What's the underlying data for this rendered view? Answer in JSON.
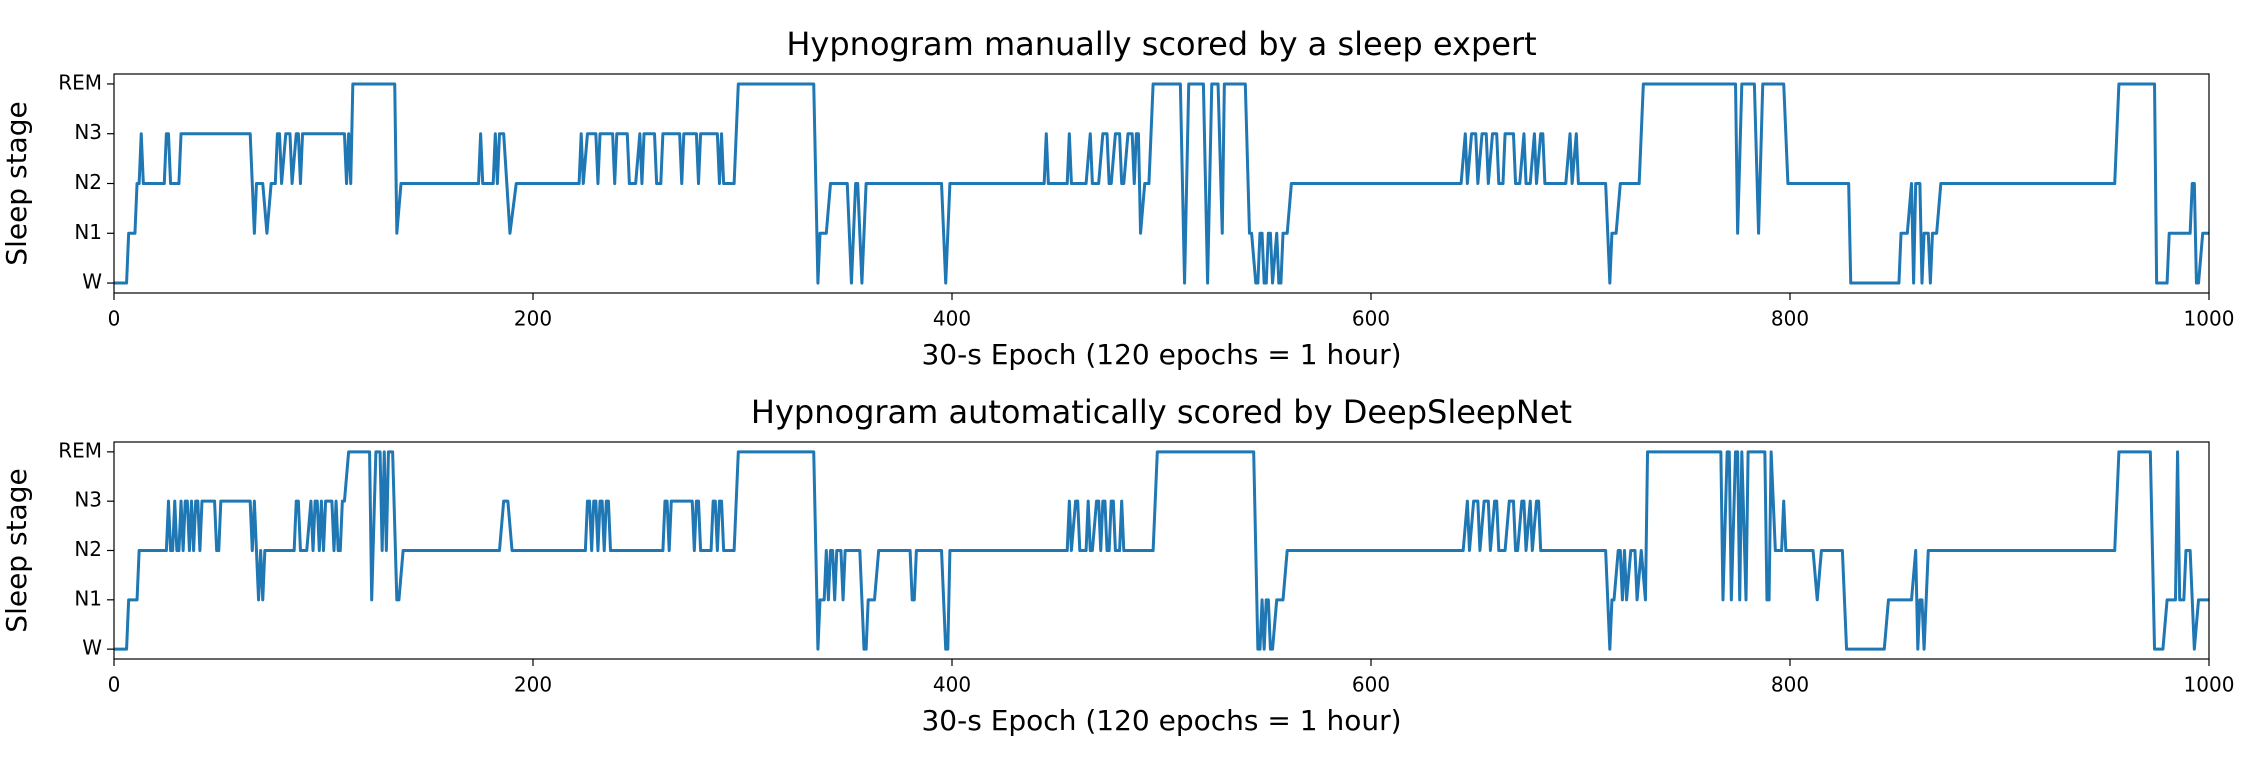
{
  "chart_data": [
    {
      "type": "line",
      "title": "Hypnogram manually scored by a sleep expert",
      "xlabel": "30-s Epoch (120 epochs = 1 hour)",
      "ylabel": "Sleep stage",
      "xlim": [
        0,
        1000
      ],
      "xticks": [
        0,
        200,
        400,
        600,
        800,
        1000
      ],
      "ylim": [
        -0.2,
        4.2
      ],
      "yticks": [
        {
          "value": 0,
          "label": "W"
        },
        {
          "value": 1,
          "label": "N1"
        },
        {
          "value": 2,
          "label": "N2"
        },
        {
          "value": 3,
          "label": "N3"
        },
        {
          "value": 4,
          "label": "REM"
        }
      ],
      "color": "#1f77b4",
      "x": [
        0,
        6,
        7,
        10,
        11,
        12,
        13,
        14,
        24,
        25,
        26,
        27,
        31,
        32,
        65,
        67,
        68,
        71,
        73,
        75,
        77,
        78,
        79,
        80,
        82,
        84,
        85,
        87,
        88,
        89,
        90,
        110,
        111,
        112,
        113,
        114,
        134,
        135,
        137,
        174,
        175,
        176,
        181,
        182,
        183,
        184,
        186,
        189,
        192,
        222,
        223,
        224,
        226,
        230,
        231,
        232,
        238,
        239,
        240,
        245,
        246,
        249,
        251,
        252,
        253,
        258,
        259,
        261,
        262,
        270,
        271,
        272,
        278,
        279,
        280,
        288,
        289,
        290,
        291,
        296,
        298,
        334,
        336,
        337,
        340,
        342,
        350,
        352,
        354,
        355,
        357,
        359,
        395,
        397,
        399,
        444,
        445,
        446,
        455,
        456,
        457,
        464,
        466,
        467,
        470,
        472,
        474,
        475,
        476,
        478,
        480,
        481,
        482,
        484,
        486,
        487,
        488,
        489,
        490,
        492,
        494,
        496,
        509,
        511,
        513,
        520,
        522,
        524,
        527,
        529,
        530,
        540,
        542,
        543,
        545,
        546,
        547,
        548,
        549,
        550,
        551,
        552,
        553,
        555,
        556,
        557,
        558,
        560,
        562,
        643,
        645,
        646,
        648,
        650,
        651,
        653,
        655,
        656,
        658,
        660,
        661,
        663,
        664,
        668,
        669,
        671,
        673,
        674,
        676,
        678,
        679,
        681,
        682,
        683,
        693,
        695,
        696,
        698,
        699,
        712,
        714,
        715,
        717,
        719,
        728,
        730,
        774,
        775,
        777,
        783,
        785,
        787,
        797,
        799,
        828,
        829,
        852,
        853,
        856,
        858,
        859,
        860,
        862,
        863,
        864,
        866,
        867,
        868,
        870,
        872,
        955,
        957,
        974,
        975,
        980,
        981,
        991,
        992,
        993,
        994,
        995,
        997,
        1000
      ],
      "values": [
        0,
        0,
        1,
        1,
        2,
        2,
        3,
        2,
        2,
        3,
        3,
        2,
        2,
        3,
        3,
        1,
        2,
        2,
        1,
        2,
        2,
        3,
        3,
        2,
        3,
        3,
        2,
        3,
        3,
        2,
        3,
        3,
        2,
        3,
        2,
        4,
        4,
        1,
        2,
        2,
        3,
        2,
        2,
        3,
        2,
        3,
        3,
        1,
        2,
        2,
        3,
        2,
        3,
        3,
        2,
        3,
        3,
        2,
        3,
        3,
        2,
        2,
        3,
        2,
        3,
        3,
        2,
        2,
        3,
        3,
        2,
        3,
        3,
        2,
        3,
        3,
        2,
        3,
        2,
        2,
        4,
        4,
        0,
        1,
        1,
        2,
        2,
        0,
        2,
        2,
        0,
        2,
        2,
        0,
        2,
        2,
        3,
        2,
        2,
        3,
        2,
        2,
        3,
        2,
        2,
        3,
        3,
        2,
        2,
        3,
        3,
        2,
        2,
        3,
        3,
        2,
        3,
        3,
        1,
        2,
        2,
        4,
        4,
        0,
        4,
        4,
        0,
        4,
        4,
        1,
        4,
        4,
        1,
        1,
        0,
        0,
        1,
        1,
        0,
        0,
        1,
        1,
        0,
        1,
        0,
        0,
        1,
        1,
        2,
        2,
        3,
        2,
        3,
        3,
        2,
        3,
        3,
        2,
        3,
        3,
        2,
        2,
        3,
        3,
        2,
        2,
        3,
        2,
        2,
        3,
        2,
        3,
        3,
        2,
        2,
        3,
        2,
        3,
        2,
        2,
        0,
        1,
        1,
        2,
        2,
        4,
        4,
        1,
        4,
        4,
        1,
        4,
        4,
        2,
        2,
        0,
        0,
        1,
        1,
        2,
        0,
        2,
        2,
        0,
        1,
        1,
        0,
        1,
        1,
        2,
        2,
        4,
        4,
        0,
        0,
        1,
        1,
        2,
        2,
        0,
        0,
        1,
        1
      ]
    },
    {
      "type": "line",
      "title": "Hypnogram automatically scored by DeepSleepNet",
      "xlabel": "30-s Epoch (120 epochs = 1 hour)",
      "ylabel": "Sleep stage",
      "xlim": [
        0,
        1000
      ],
      "xticks": [
        0,
        200,
        400,
        600,
        800,
        1000
      ],
      "ylim": [
        -0.2,
        4.2
      ],
      "yticks": [
        {
          "value": 0,
          "label": "W"
        },
        {
          "value": 1,
          "label": "N1"
        },
        {
          "value": 2,
          "label": "N2"
        },
        {
          "value": 3,
          "label": "N3"
        },
        {
          "value": 4,
          "label": "REM"
        }
      ],
      "color": "#1f77b4",
      "x": [
        0,
        6,
        7,
        11,
        12,
        25,
        26,
        27,
        28,
        29,
        30,
        31,
        32,
        33,
        34,
        35,
        36,
        37,
        38,
        39,
        40,
        41,
        42,
        48,
        49,
        50,
        51,
        65,
        66,
        67,
        68,
        69,
        70,
        71,
        72,
        86,
        87,
        88,
        89,
        92,
        94,
        95,
        96,
        97,
        98,
        99,
        100,
        101,
        104,
        105,
        106,
        107,
        108,
        109,
        110,
        112,
        122,
        123,
        125,
        127,
        128,
        129,
        130,
        131,
        133,
        135,
        136,
        138,
        184,
        186,
        188,
        190,
        225,
        226,
        227,
        228,
        229,
        230,
        231,
        232,
        233,
        234,
        235,
        236,
        237,
        262,
        263,
        264,
        265,
        266,
        276,
        277,
        278,
        279,
        280,
        285,
        286,
        287,
        288,
        289,
        290,
        291,
        296,
        298,
        334,
        336,
        337,
        339,
        340,
        341,
        342,
        343,
        344,
        345,
        347,
        348,
        349,
        356,
        357,
        358,
        359,
        360,
        363,
        365,
        380,
        381,
        382,
        383,
        395,
        396,
        397,
        398,
        399,
        455,
        456,
        457,
        459,
        460,
        461,
        464,
        465,
        466,
        467,
        469,
        470,
        471,
        472,
        473,
        474,
        475,
        476,
        477,
        478,
        480,
        481,
        482,
        496,
        498,
        544,
        546,
        547,
        548,
        549,
        550,
        551,
        552,
        553,
        555,
        558,
        560,
        644,
        646,
        647,
        649,
        651,
        652,
        654,
        656,
        657,
        659,
        660,
        661,
        664,
        666,
        668,
        669,
        670,
        672,
        673,
        674,
        676,
        677,
        679,
        680,
        681,
        712,
        714,
        715,
        716,
        718,
        719,
        720,
        721,
        722,
        724,
        726,
        727,
        729,
        731,
        732,
        767,
        768,
        770,
        771,
        772,
        774,
        775,
        776,
        777,
        779,
        780,
        788,
        789,
        790,
        791,
        793,
        796,
        797,
        798,
        811,
        813,
        815,
        825,
        827,
        845,
        847,
        858,
        860,
        861,
        862,
        863,
        864,
        866,
        955,
        957,
        972,
        974,
        978,
        980,
        984,
        985,
        986,
        988,
        989,
        991,
        993,
        995,
        1000
      ],
      "values": [
        0,
        0,
        1,
        1,
        2,
        2,
        3,
        2,
        2,
        3,
        2,
        2,
        3,
        2,
        3,
        3,
        2,
        3,
        2,
        3,
        3,
        2,
        3,
        3,
        2,
        2,
        3,
        3,
        2,
        3,
        2,
        1,
        2,
        1,
        2,
        2,
        3,
        3,
        2,
        2,
        3,
        2,
        3,
        3,
        2,
        3,
        2,
        3,
        3,
        2,
        3,
        2,
        2,
        3,
        3,
        4,
        4,
        1,
        4,
        4,
        2,
        4,
        2,
        4,
        4,
        1,
        1,
        2,
        2,
        3,
        3,
        2,
        2,
        3,
        3,
        2,
        3,
        3,
        2,
        3,
        3,
        2,
        3,
        3,
        2,
        2,
        3,
        3,
        2,
        3,
        3,
        2,
        3,
        3,
        2,
        2,
        3,
        3,
        2,
        3,
        3,
        2,
        2,
        4,
        4,
        0,
        1,
        1,
        2,
        1,
        2,
        2,
        1,
        2,
        2,
        1,
        2,
        2,
        1,
        0,
        0,
        1,
        1,
        2,
        2,
        1,
        1,
        2,
        2,
        1,
        0,
        0,
        2,
        2,
        3,
        2,
        3,
        3,
        2,
        2,
        3,
        2,
        2,
        3,
        3,
        2,
        3,
        3,
        2,
        2,
        3,
        3,
        2,
        2,
        3,
        2,
        2,
        4,
        4,
        0,
        0,
        1,
        0,
        1,
        1,
        0,
        0,
        1,
        1,
        2,
        2,
        3,
        2,
        3,
        3,
        2,
        3,
        3,
        2,
        3,
        3,
        2,
        2,
        3,
        3,
        2,
        2,
        3,
        3,
        2,
        3,
        2,
        3,
        3,
        2,
        2,
        0,
        1,
        1,
        2,
        2,
        1,
        2,
        1,
        2,
        2,
        1,
        2,
        1,
        4,
        4,
        1,
        4,
        4,
        1,
        4,
        4,
        1,
        4,
        1,
        4,
        4,
        1,
        1,
        4,
        2,
        2,
        3,
        2,
        2,
        1,
        2,
        2,
        0,
        0,
        1,
        1,
        2,
        0,
        1,
        1,
        0,
        2,
        2,
        4,
        4,
        0,
        0,
        1,
        1,
        4,
        1,
        1,
        2,
        2,
        0,
        1,
        1
      ]
    }
  ]
}
